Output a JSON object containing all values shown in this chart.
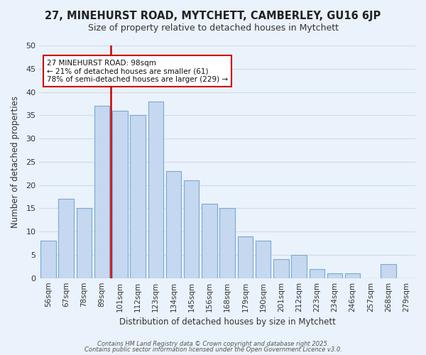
{
  "title": "27, MINEHURST ROAD, MYTCHETT, CAMBERLEY, GU16 6JP",
  "subtitle": "Size of property relative to detached houses in Mytchett",
  "xlabel": "Distribution of detached houses by size in Mytchett",
  "ylabel": "Number of detached properties",
  "bar_labels": [
    "56sqm",
    "67sqm",
    "78sqm",
    "89sqm",
    "101sqm",
    "112sqm",
    "123sqm",
    "134sqm",
    "145sqm",
    "156sqm",
    "168sqm",
    "179sqm",
    "190sqm",
    "201sqm",
    "212sqm",
    "223sqm",
    "234sqm",
    "246sqm",
    "257sqm",
    "268sqm",
    "279sqm"
  ],
  "bar_values": [
    8,
    17,
    15,
    37,
    36,
    35,
    38,
    23,
    21,
    16,
    15,
    9,
    8,
    4,
    5,
    2,
    1,
    1,
    0,
    3,
    0
  ],
  "bar_color": "#c5d8f0",
  "bar_edge_color": "#7aa8d4",
  "vline_x_index": 4,
  "vline_color": "#cc0000",
  "annotation_text": "27 MINEHURST ROAD: 98sqm\n← 21% of detached houses are smaller (61)\n78% of semi-detached houses are larger (229) →",
  "annotation_box_color": "#ffffff",
  "annotation_box_edge_color": "#cc0000",
  "ylim": [
    0,
    50
  ],
  "yticks": [
    0,
    5,
    10,
    15,
    20,
    25,
    30,
    35,
    40,
    45,
    50
  ],
  "grid_color": "#d0dce8",
  "bg_color": "#eaf2fb",
  "footer1": "Contains HM Land Registry data © Crown copyright and database right 2025.",
  "footer2": "Contains public sector information licensed under the Open Government Licence v3.0."
}
